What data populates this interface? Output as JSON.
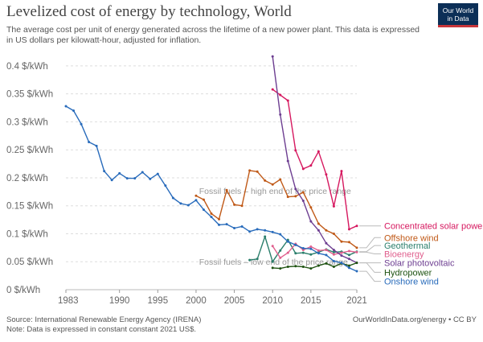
{
  "header": {
    "title": "Levelized cost of energy by technology, World",
    "subtitle": "The average cost per unit of energy generated across the lifetime of a new power plant. This data is expressed in US dollars per kilowatt-hour, adjusted for inflation.",
    "logo_line1": "Our World",
    "logo_line2": "in Data"
  },
  "footer": {
    "source": "Source: International Renewable Energy Agency (IRENA)",
    "note": "Note: Data is expressed in constant constant 2021 US$.",
    "credit": "OurWorldInData.org/energy • CC BY"
  },
  "chart_data": {
    "type": "line",
    "title": "Levelized cost of energy by technology, World",
    "xlabel": "",
    "ylabel": "",
    "xlim": [
      1983,
      2021
    ],
    "ylim": [
      0,
      0.42
    ],
    "x_ticks": [
      1983,
      1990,
      1995,
      2000,
      2005,
      2010,
      2015,
      2021
    ],
    "y_ticks": [
      {
        "value": 0,
        "label": "0 $/kWh"
      },
      {
        "value": 0.05,
        "label": "0.05 $/kWh"
      },
      {
        "value": 0.1,
        "label": "0.1 $/kWh"
      },
      {
        "value": 0.15,
        "label": "0.15 $/kWh"
      },
      {
        "value": 0.2,
        "label": "0.2 $/kWh"
      },
      {
        "value": 0.25,
        "label": "0.25 $/kWh"
      },
      {
        "value": 0.3,
        "label": "0.3 $/kWh"
      },
      {
        "value": 0.35,
        "label": "0.35 $/kWh"
      },
      {
        "value": 0.4,
        "label": "0.4 $/kWh"
      }
    ],
    "grid": "horizontal",
    "legend": "right",
    "reference_lines": [
      {
        "label": "Fossil fuels – high end of the price range",
        "value": 0.177
      },
      {
        "label": "Fossil fuels – low end of the price range",
        "value": 0.05
      }
    ],
    "series": [
      {
        "name": "Concentrated solar power",
        "color": "#d6185f",
        "x": [
          2010,
          2011,
          2012,
          2013,
          2014,
          2015,
          2016,
          2017,
          2018,
          2019,
          2020,
          2021
        ],
        "y": [
          0.358,
          0.348,
          0.338,
          0.249,
          0.216,
          0.222,
          0.247,
          0.206,
          0.149,
          0.212,
          0.108,
          0.114
        ]
      },
      {
        "name": "Offshore wind",
        "color": "#c05917",
        "x": [
          2000,
          2001,
          2002,
          2003,
          2004,
          2005,
          2006,
          2007,
          2008,
          2009,
          2010,
          2011,
          2012,
          2013,
          2014,
          2015,
          2016,
          2017,
          2018,
          2019,
          2020,
          2021
        ],
        "y": [
          0.168,
          0.161,
          0.136,
          0.126,
          0.178,
          0.152,
          0.15,
          0.213,
          0.211,
          0.195,
          0.188,
          0.197,
          0.166,
          0.167,
          0.174,
          0.147,
          0.118,
          0.106,
          0.1,
          0.086,
          0.085,
          0.075
        ]
      },
      {
        "name": "Geothermal",
        "color": "#2a7e6b",
        "x": [
          2007,
          2008,
          2009,
          2010,
          2011,
          2012,
          2013,
          2014,
          2015,
          2016,
          2017,
          2018,
          2019,
          2020,
          2021
        ],
        "y": [
          0.053,
          0.055,
          0.095,
          0.05,
          0.07,
          0.089,
          0.065,
          0.066,
          0.063,
          0.067,
          0.072,
          0.067,
          0.068,
          0.062,
          0.068
        ]
      },
      {
        "name": "Bioenergy",
        "color": "#e0608e",
        "x": [
          2010,
          2011,
          2012,
          2013,
          2014,
          2015,
          2016,
          2017,
          2018,
          2019,
          2020,
          2021
        ],
        "y": [
          0.078,
          0.057,
          0.066,
          0.082,
          0.071,
          0.077,
          0.07,
          0.071,
          0.063,
          0.066,
          0.069,
          0.067
        ]
      },
      {
        "name": "Solar photovoltaic",
        "color": "#6d3e91",
        "x": [
          2010,
          2011,
          2012,
          2013,
          2014,
          2015,
          2016,
          2017,
          2018,
          2019,
          2020,
          2021
        ],
        "y": [
          0.417,
          0.313,
          0.23,
          0.18,
          0.159,
          0.122,
          0.106,
          0.083,
          0.071,
          0.061,
          0.055,
          0.048
        ]
      },
      {
        "name": "Hydropower",
        "color": "#1f5312",
        "x": [
          2010,
          2011,
          2012,
          2013,
          2014,
          2015,
          2016,
          2017,
          2018,
          2019,
          2020,
          2021
        ],
        "y": [
          0.039,
          0.038,
          0.041,
          0.042,
          0.041,
          0.038,
          0.043,
          0.047,
          0.041,
          0.047,
          0.043,
          0.048
        ]
      },
      {
        "name": "Onshore wind",
        "color": "#286bbb",
        "x": [
          1983,
          1984,
          1985,
          1986,
          1987,
          1988,
          1989,
          1990,
          1991,
          1992,
          1993,
          1994,
          1995,
          1996,
          1997,
          1998,
          1999,
          2000,
          2001,
          2002,
          2003,
          2004,
          2005,
          2006,
          2007,
          2008,
          2009,
          2010,
          2011,
          2012,
          2013,
          2014,
          2015,
          2016,
          2017,
          2018,
          2019,
          2020,
          2021
        ],
        "y": [
          0.328,
          0.32,
          0.296,
          0.264,
          0.257,
          0.212,
          0.196,
          0.208,
          0.199,
          0.199,
          0.21,
          0.198,
          0.207,
          0.186,
          0.164,
          0.154,
          0.151,
          0.16,
          0.143,
          0.13,
          0.116,
          0.117,
          0.11,
          0.113,
          0.104,
          0.108,
          0.106,
          0.103,
          0.099,
          0.086,
          0.08,
          0.074,
          0.073,
          0.065,
          0.062,
          0.051,
          0.048,
          0.039,
          0.033
        ]
      }
    ],
    "legend_entries": [
      {
        "name": "Concentrated solar power",
        "color": "#d6185f",
        "y": 0.114
      },
      {
        "name": "Offshore wind",
        "color": "#c05917",
        "y": 0.093
      },
      {
        "name": "Geothermal",
        "color": "#2a7e6b",
        "y": 0.079
      },
      {
        "name": "Bioenergy",
        "color": "#e0608e",
        "y": 0.064
      },
      {
        "name": "Solar photovoltaic",
        "color": "#6d3e91",
        "y": 0.048
      },
      {
        "name": "Hydropower",
        "color": "#1f5312",
        "y": 0.031
      },
      {
        "name": "Onshore wind",
        "color": "#286bbb",
        "y": 0.015
      }
    ]
  }
}
